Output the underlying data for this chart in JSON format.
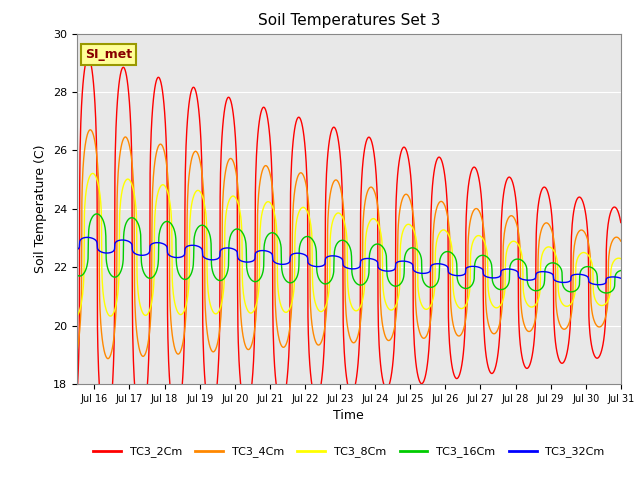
{
  "title": "Soil Temperatures Set 3",
  "xlabel": "Time",
  "ylabel": "Soil Temperature (C)",
  "ylim": [
    18,
    30
  ],
  "yticks": [
    18,
    20,
    22,
    24,
    26,
    28,
    30
  ],
  "series_labels": [
    "TC3_2Cm",
    "TC3_4Cm",
    "TC3_8Cm",
    "TC3_16Cm",
    "TC3_32Cm"
  ],
  "series_colors": [
    "#ff0000",
    "#ff8800",
    "#ffff00",
    "#00cc00",
    "#0000ff"
  ],
  "annotation_text": "SI_met",
  "annotation_facecolor": "#ffff99",
  "annotation_edgecolor": "#999900",
  "annotation_textcolor": "#880000",
  "bg_color": "#e8e8e8",
  "fig_bg_color": "#ffffff",
  "start_day": 15.5,
  "end_day": 31.0,
  "n_points": 1500,
  "base_start": [
    22.8,
    22.8,
    22.8,
    22.8,
    22.8
  ],
  "base_end": [
    21.5,
    21.5,
    21.5,
    21.5,
    21.5
  ],
  "amp_start": [
    6.5,
    4.0,
    2.5,
    1.1,
    0.25
  ],
  "amp_end": [
    2.5,
    1.5,
    0.8,
    0.4,
    0.15
  ],
  "phase_lags": [
    0.0,
    0.06,
    0.13,
    0.25,
    0.0
  ],
  "peak_sharpness": 3.5,
  "grid_color": "#ffffff",
  "linewidth": 1.0,
  "figsize": [
    6.4,
    4.8
  ],
  "dpi": 100
}
